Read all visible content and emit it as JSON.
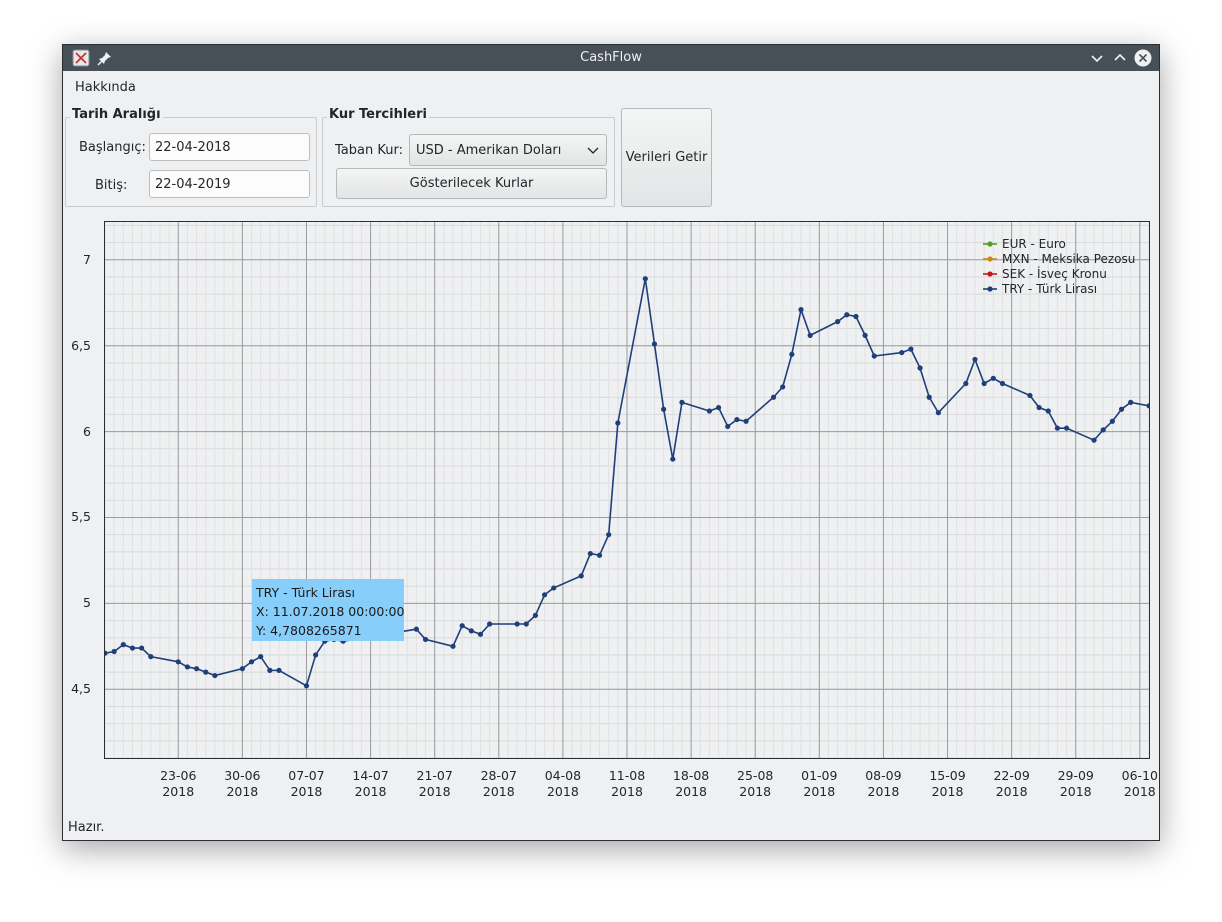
{
  "window": {
    "title": "CashFlow"
  },
  "menu": {
    "items": [
      {
        "label": "Hakkında"
      }
    ]
  },
  "date_range": {
    "title": "Tarih Aralığı",
    "start_label": "Başlangıç:",
    "start_value": "22-04-2018",
    "end_label": "Bitiş:",
    "end_value": "22-04-2019"
  },
  "currency_prefs": {
    "title": "Kur Tercihleri",
    "base_label": "Taban Kur:",
    "base_value": "USD - Amerikan Doları",
    "shown_button": "Gösterilecek Kurlar"
  },
  "fetch_button": "Verileri Getir",
  "status": "Hazır.",
  "tooltip": {
    "series": "TRY - Türk Lirası",
    "x_line": "X: 11.07.2018 00:00:00",
    "y_line": "Y: 4,7808265871"
  },
  "colors": {
    "eur": "#4da01e",
    "mxn": "#d08a12",
    "sek": "#c81616",
    "try": "#1f3f7a",
    "tooltip_bg": "#87cefa"
  },
  "icons": {
    "app": "app-icon",
    "pin": "pin-icon",
    "minimize": "chevron-down-icon",
    "maximize": "chevron-up-icon",
    "close": "close-icon"
  },
  "chart_data": {
    "type": "line",
    "x_start": "2018-06-15",
    "x_end": "2018-10-07",
    "ylim": [
      4.1,
      7.22
    ],
    "grid": true,
    "legend_position": "top-right",
    "y_ticks": [
      {
        "value": 4.5,
        "label": "4,5"
      },
      {
        "value": 5,
        "label": "5"
      },
      {
        "value": 5.5,
        "label": "5,5"
      },
      {
        "value": 6,
        "label": "6"
      },
      {
        "value": 6.5,
        "label": "6,5"
      },
      {
        "value": 7,
        "label": "7"
      }
    ],
    "x_ticks": [
      {
        "date": "2018-06-23",
        "line1": "23-06",
        "line2": "2018"
      },
      {
        "date": "2018-06-30",
        "line1": "30-06",
        "line2": "2018"
      },
      {
        "date": "2018-07-07",
        "line1": "07-07",
        "line2": "2018"
      },
      {
        "date": "2018-07-14",
        "line1": "14-07",
        "line2": "2018"
      },
      {
        "date": "2018-07-21",
        "line1": "21-07",
        "line2": "2018"
      },
      {
        "date": "2018-07-28",
        "line1": "28-07",
        "line2": "2018"
      },
      {
        "date": "2018-08-04",
        "line1": "04-08",
        "line2": "2018"
      },
      {
        "date": "2018-08-11",
        "line1": "11-08",
        "line2": "2018"
      },
      {
        "date": "2018-08-18",
        "line1": "18-08",
        "line2": "2018"
      },
      {
        "date": "2018-08-25",
        "line1": "25-08",
        "line2": "2018"
      },
      {
        "date": "2018-09-01",
        "line1": "01-09",
        "line2": "2018"
      },
      {
        "date": "2018-09-08",
        "line1": "08-09",
        "line2": "2018"
      },
      {
        "date": "2018-09-15",
        "line1": "15-09",
        "line2": "2018"
      },
      {
        "date": "2018-09-22",
        "line1": "22-09",
        "line2": "2018"
      },
      {
        "date": "2018-09-29",
        "line1": "29-09",
        "line2": "2018"
      },
      {
        "date": "2018-10-06",
        "line1": "06-10",
        "line2": "2018"
      }
    ],
    "legend": [
      {
        "name": "EUR - Euro",
        "color": "#4da01e"
      },
      {
        "name": "MXN - Meksika Pezosu",
        "color": "#d08a12"
      },
      {
        "name": "SEK - İsveç Kronu",
        "color": "#c81616"
      },
      {
        "name": "TRY - Türk Lirası",
        "color": "#1f3f7a"
      }
    ],
    "series": [
      {
        "name": "TRY - Türk Lirası",
        "color": "#1f3f7a",
        "points": [
          [
            "2018-06-15",
            4.71
          ],
          [
            "2018-06-16",
            4.72
          ],
          [
            "2018-06-17",
            4.76
          ],
          [
            "2018-06-18",
            4.74
          ],
          [
            "2018-06-19",
            4.74
          ],
          [
            "2018-06-20",
            4.69
          ],
          [
            "2018-06-23",
            4.66
          ],
          [
            "2018-06-24",
            4.63
          ],
          [
            "2018-06-25",
            4.62
          ],
          [
            "2018-06-26",
            4.6
          ],
          [
            "2018-06-27",
            4.58
          ],
          [
            "2018-06-30",
            4.62
          ],
          [
            "2018-07-01",
            4.66
          ],
          [
            "2018-07-02",
            4.69
          ],
          [
            "2018-07-03",
            4.61
          ],
          [
            "2018-07-04",
            4.61
          ],
          [
            "2018-07-07",
            4.52
          ],
          [
            "2018-07-08",
            4.7
          ],
          [
            "2018-07-09",
            4.78
          ],
          [
            "2018-07-10",
            4.79
          ],
          [
            "2018-07-11",
            4.78
          ],
          [
            "2018-07-19",
            4.85
          ],
          [
            "2018-07-20",
            4.79
          ],
          [
            "2018-07-23",
            4.75
          ],
          [
            "2018-07-24",
            4.87
          ],
          [
            "2018-07-25",
            4.84
          ],
          [
            "2018-07-26",
            4.82
          ],
          [
            "2018-07-27",
            4.88
          ],
          [
            "2018-07-30",
            4.88
          ],
          [
            "2018-07-31",
            4.88
          ],
          [
            "2018-08-01",
            4.93
          ],
          [
            "2018-08-02",
            5.05
          ],
          [
            "2018-08-03",
            5.09
          ],
          [
            "2018-08-06",
            5.16
          ],
          [
            "2018-08-07",
            5.29
          ],
          [
            "2018-08-08",
            5.28
          ],
          [
            "2018-08-09",
            5.4
          ],
          [
            "2018-08-10",
            6.05
          ],
          [
            "2018-08-13",
            6.89
          ],
          [
            "2018-08-14",
            6.51
          ],
          [
            "2018-08-15",
            6.13
          ],
          [
            "2018-08-16",
            5.84
          ],
          [
            "2018-08-17",
            6.17
          ],
          [
            "2018-08-20",
            6.12
          ],
          [
            "2018-08-21",
            6.14
          ],
          [
            "2018-08-22",
            6.03
          ],
          [
            "2018-08-23",
            6.07
          ],
          [
            "2018-08-24",
            6.06
          ],
          [
            "2018-08-27",
            6.2
          ],
          [
            "2018-08-28",
            6.26
          ],
          [
            "2018-08-29",
            6.45
          ],
          [
            "2018-08-30",
            6.71
          ],
          [
            "2018-08-31",
            6.56
          ],
          [
            "2018-09-03",
            6.64
          ],
          [
            "2018-09-04",
            6.68
          ],
          [
            "2018-09-05",
            6.67
          ],
          [
            "2018-09-06",
            6.56
          ],
          [
            "2018-09-07",
            6.44
          ],
          [
            "2018-09-10",
            6.46
          ],
          [
            "2018-09-11",
            6.48
          ],
          [
            "2018-09-12",
            6.37
          ],
          [
            "2018-09-13",
            6.2
          ],
          [
            "2018-09-14",
            6.11
          ],
          [
            "2018-09-17",
            6.28
          ],
          [
            "2018-09-18",
            6.42
          ],
          [
            "2018-09-19",
            6.28
          ],
          [
            "2018-09-20",
            6.31
          ],
          [
            "2018-09-21",
            6.28
          ],
          [
            "2018-09-24",
            6.21
          ],
          [
            "2018-09-25",
            6.14
          ],
          [
            "2018-09-26",
            6.12
          ],
          [
            "2018-09-27",
            6.02
          ],
          [
            "2018-09-28",
            6.02
          ],
          [
            "2018-10-01",
            5.95
          ],
          [
            "2018-10-02",
            6.01
          ],
          [
            "2018-10-03",
            6.06
          ],
          [
            "2018-10-04",
            6.13
          ],
          [
            "2018-10-05",
            6.17
          ],
          [
            "2018-10-07",
            6.15
          ]
        ]
      }
    ]
  }
}
